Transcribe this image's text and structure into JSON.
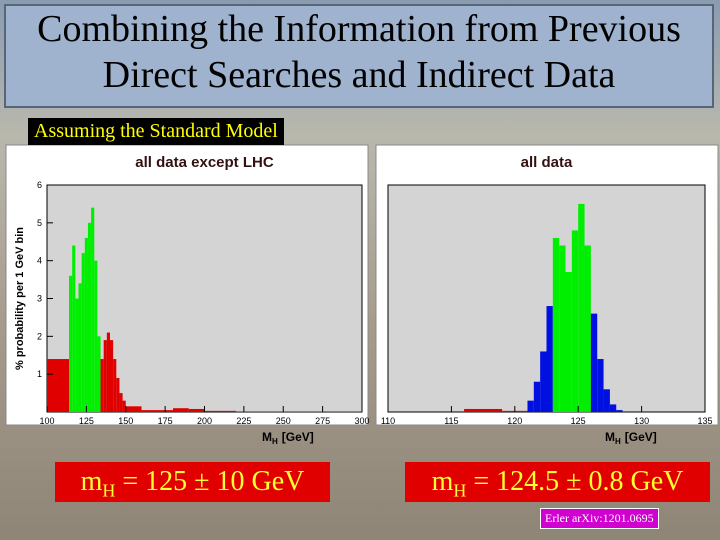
{
  "title": "Combining the Information from Previous Direct Searches and Indirect Data",
  "subtitle": "Assuming the Standard Model",
  "results": [
    {
      "symbol": "m",
      "sub": "H",
      "value": "= 125 ± 10 GeV"
    },
    {
      "symbol": "m",
      "sub": "H",
      "value": "= 124.5 ± 0.8 GeV"
    }
  ],
  "citation": "Erler arXiv:1201.0695",
  "chart_data": [
    {
      "type": "histogram",
      "title": "all data except LHC",
      "xlabel": {
        "symbol": "M",
        "sub": "H",
        "unit": "[GeV]"
      },
      "ylabel": "% probability per 1 GeV bin",
      "bins": [
        100,
        114,
        116,
        118,
        120,
        122,
        124,
        126,
        128,
        130,
        132,
        134,
        136,
        138,
        140,
        142,
        144,
        146,
        148,
        150,
        160,
        175,
        180,
        190,
        200,
        220,
        300
      ],
      "values": [
        1.4,
        3.6,
        4.4,
        3.0,
        3.4,
        4.2,
        4.6,
        5.0,
        5.4,
        4.0,
        2.0,
        1.4,
        1.9,
        2.1,
        1.9,
        1.4,
        0.9,
        0.5,
        0.3,
        0.15,
        0.05,
        0.05,
        0.1,
        0.08,
        0.03,
        0.01
      ],
      "colors": [
        "#e00000",
        "#00ee00",
        "#00ee00",
        "#00ee00",
        "#00ee00",
        "#00ee00",
        "#00ee00",
        "#00ee00",
        "#00ee00",
        "#00ee00",
        "#00ee00",
        "#e00000",
        "#e00000",
        "#e00000",
        "#e00000",
        "#e00000",
        "#e00000",
        "#e00000",
        "#e00000",
        "#e00000",
        "#e00000",
        "#e00000",
        "#e00000",
        "#e00000",
        "#e00000",
        "#e00000"
      ],
      "xlim": [
        100,
        300
      ],
      "xticks": [
        100,
        125,
        150,
        175,
        200,
        225,
        250,
        275,
        300
      ],
      "ylim": [
        0,
        6
      ],
      "yticks": [
        1,
        2,
        3,
        4,
        5,
        6
      ]
    },
    {
      "type": "histogram",
      "title": "all data",
      "xlabel": {
        "symbol": "M",
        "sub": "H",
        "unit": "[GeV]"
      },
      "bins": [
        116,
        119,
        121,
        121.5,
        122,
        122.5,
        123,
        123.5,
        124,
        124.5,
        125,
        125.5,
        126,
        126.5,
        127,
        127.5,
        128,
        128.5
      ],
      "values": [
        0.08,
        0.03,
        0.3,
        0.8,
        1.6,
        2.8,
        4.6,
        4.4,
        3.7,
        4.8,
        5.5,
        4.4,
        2.6,
        1.4,
        0.6,
        0.2,
        0.05
      ],
      "colors": [
        "#e00000",
        "#e00000",
        "#0010e0",
        "#0010e0",
        "#0010e0",
        "#0010e0",
        "#00ee00",
        "#00ee00",
        "#00ee00",
        "#00ee00",
        "#00ee00",
        "#00ee00",
        "#0010e0",
        "#0010e0",
        "#0010e0",
        "#0010e0",
        "#0010e0"
      ],
      "xlim": [
        110,
        135
      ],
      "xticks": [
        110,
        115,
        120,
        125,
        130,
        135
      ],
      "ylim": [
        0,
        6
      ]
    }
  ]
}
